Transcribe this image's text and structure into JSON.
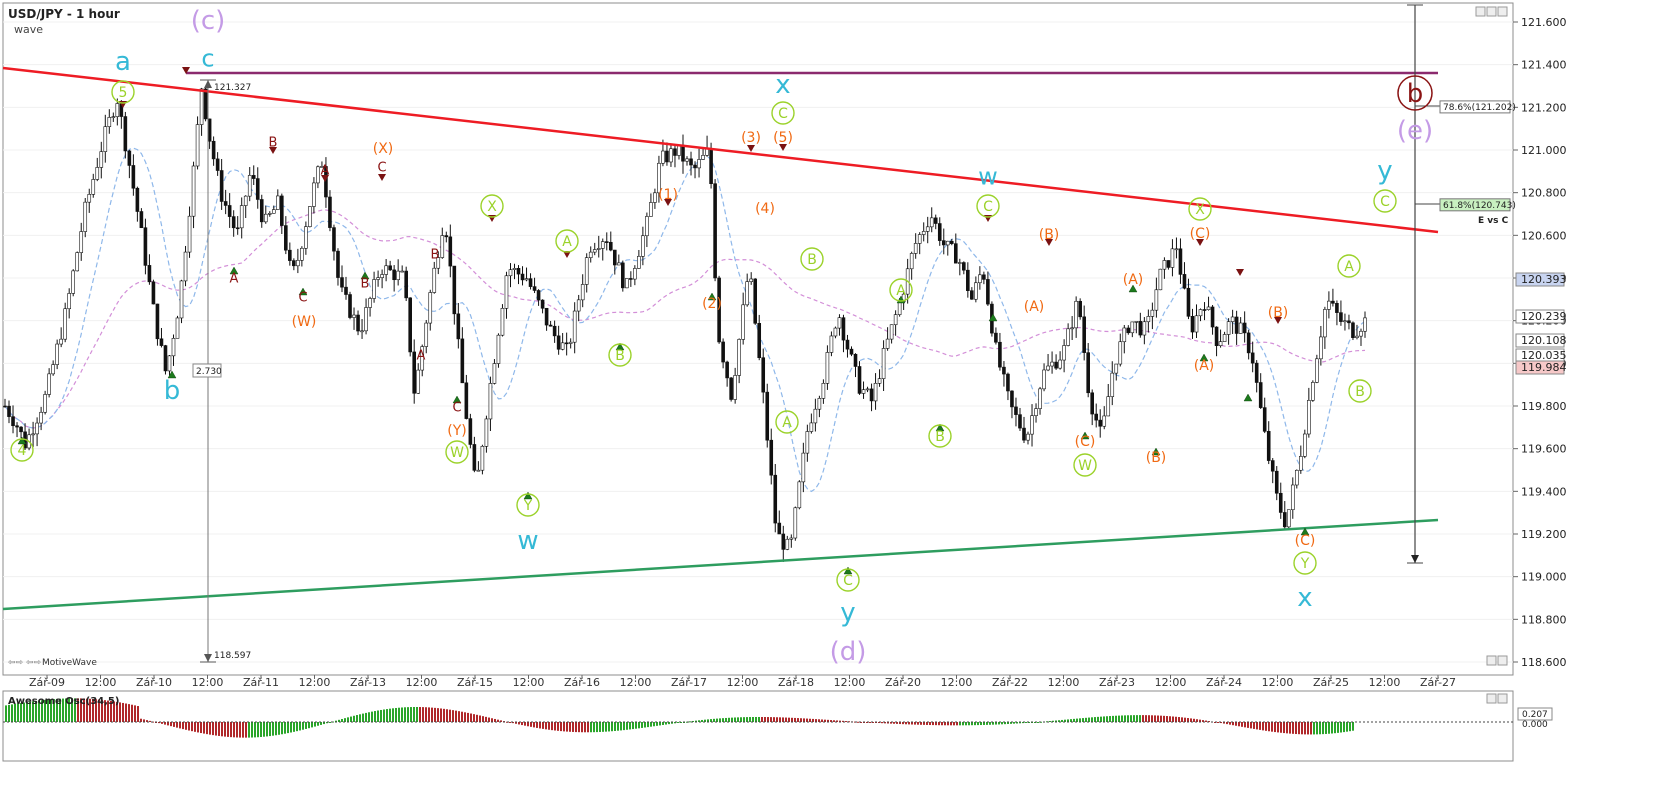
{
  "header": {
    "title": "USD/JPY - 1 hour",
    "subtitle": "wave",
    "brand": "MotiveWave",
    "oscillator_label": "Awesome Osc(34,5)",
    "oscillator_value": "0.207",
    "oscillator_zero": "0.000"
  },
  "colors": {
    "resistance_line": "#ee1c24",
    "support_line": "#2e9d5f",
    "horizontal_line": "#8b2a6e",
    "wave_cyan": "#35b9d6",
    "wave_violet": "#c49be6",
    "wave_orange": "#f06a14",
    "wave_maroon": "#8a1313",
    "wave_green": "#9bd22a",
    "osc_up": "#2aa52a",
    "osc_down": "#b0282a"
  },
  "chart_data": {
    "type": "line",
    "title": "USD/JPY - 1 hour",
    "ylim": [
      118.5,
      121.7
    ],
    "y_ticks": [
      "121.600",
      "121.400",
      "121.200",
      "121.000",
      "120.800",
      "120.600",
      "120.400",
      "120.200",
      "120.000",
      "119.800",
      "119.600",
      "119.400",
      "119.200",
      "119.000",
      "118.800",
      "118.600"
    ],
    "x_ticks": [
      "Zář-09",
      "12:00",
      "Zář-10",
      "12:00",
      "Zář-11",
      "12:00",
      "Zář-13",
      "12:00",
      "Zář-15",
      "12:00",
      "Zář-16",
      "12:00",
      "Zář-17",
      "12:00",
      "Zář-18",
      "12:00",
      "Zář-20",
      "12:00",
      "Zář-22",
      "12:00",
      "Zář-23",
      "12:00",
      "Zář-24",
      "12:00",
      "Zář-25",
      "12:00",
      "Zář-27"
    ],
    "price_labels": [
      {
        "text": "120.393",
        "value": 120.393,
        "bg": "#c8d4f0"
      },
      {
        "text": "120.239",
        "value": 120.239,
        "bg": "#ffffff"
      },
      {
        "text": "120.108",
        "value": 120.108,
        "bg": "#ffffff"
      },
      {
        "text": "120.035",
        "value": 120.035,
        "bg": "#ffffff"
      },
      {
        "text": "119.984",
        "value": 119.984,
        "bg": "#f6c8c8"
      }
    ],
    "fib_labels": [
      {
        "text": "78.6%(121.202)",
        "value": 121.202,
        "bg": "#ffffff"
      },
      {
        "text": "61.8%(120.743)",
        "value": 120.743,
        "bg": "#c8f0c0"
      }
    ],
    "fib_note": "E vs C",
    "measure": {
      "top": "121.327",
      "bottom": "118.597",
      "range": "2.730"
    },
    "series": [
      {
        "anchors": [
          [
            0,
            119.8
          ],
          [
            8,
            119.72
          ],
          [
            15,
            119.62
          ],
          [
            30,
            119.85
          ],
          [
            45,
            120.25
          ],
          [
            58,
            120.7
          ],
          [
            70,
            121.0
          ],
          [
            82,
            121.25
          ],
          [
            92,
            120.9
          ],
          [
            100,
            120.6
          ],
          [
            110,
            120.2
          ],
          [
            118,
            119.95
          ],
          [
            128,
            120.3
          ],
          [
            138,
            120.9
          ],
          [
            144,
            121.3
          ],
          [
            150,
            121.05
          ],
          [
            158,
            120.8
          ],
          [
            170,
            120.6
          ],
          [
            180,
            120.9
          ],
          [
            190,
            120.65
          ],
          [
            200,
            120.75
          ],
          [
            210,
            120.4
          ],
          [
            215,
            120.5
          ],
          [
            225,
            120.8
          ],
          [
            232,
            120.95
          ],
          [
            245,
            120.35
          ],
          [
            260,
            120.15
          ],
          [
            275,
            120.45
          ],
          [
            292,
            120.4
          ],
          [
            300,
            119.85
          ],
          [
            312,
            120.35
          ],
          [
            322,
            120.7
          ],
          [
            334,
            119.95
          ],
          [
            345,
            119.4
          ],
          [
            352,
            119.75
          ],
          [
            368,
            120.45
          ],
          [
            382,
            120.4
          ],
          [
            400,
            120.15
          ],
          [
            412,
            120.05
          ],
          [
            428,
            120.55
          ],
          [
            440,
            120.6
          ],
          [
            455,
            120.35
          ],
          [
            470,
            120.65
          ],
          [
            480,
            120.95
          ],
          [
            492,
            121.0
          ],
          [
            504,
            120.9
          ],
          [
            516,
            121.0
          ],
          [
            522,
            120.15
          ],
          [
            532,
            119.85
          ],
          [
            545,
            120.45
          ],
          [
            556,
            119.8
          ],
          [
            565,
            119.2
          ],
          [
            575,
            119.12
          ],
          [
            588,
            119.7
          ],
          [
            600,
            119.95
          ],
          [
            610,
            120.25
          ],
          [
            616,
            120.1
          ],
          [
            625,
            119.9
          ],
          [
            635,
            119.82
          ],
          [
            644,
            120.05
          ],
          [
            656,
            120.3
          ],
          [
            666,
            120.55
          ],
          [
            678,
            120.7
          ],
          [
            688,
            120.55
          ],
          [
            698,
            120.5
          ],
          [
            708,
            120.3
          ],
          [
            716,
            120.45
          ],
          [
            726,
            120.05
          ],
          [
            736,
            119.8
          ],
          [
            748,
            119.65
          ],
          [
            760,
            119.95
          ],
          [
            775,
            120.05
          ],
          [
            786,
            120.3
          ],
          [
            794,
            119.85
          ],
          [
            803,
            119.65
          ],
          [
            812,
            120.0
          ],
          [
            824,
            120.2
          ],
          [
            836,
            120.15
          ],
          [
            845,
            120.4
          ],
          [
            858,
            120.55
          ],
          [
            868,
            120.15
          ],
          [
            878,
            120.3
          ],
          [
            888,
            120.1
          ],
          [
            898,
            120.2
          ],
          [
            905,
            120.15
          ],
          [
            913,
            120.05
          ],
          [
            924,
            119.6
          ],
          [
            932,
            119.35
          ],
          [
            938,
            119.25
          ],
          [
            948,
            119.55
          ],
          [
            958,
            119.95
          ],
          [
            968,
            120.3
          ],
          [
            978,
            120.2
          ],
          [
            988,
            120.15
          ],
          [
            996,
            120.2
          ]
        ]
      }
    ]
  },
  "wave_labels": [
    {
      "text": "a",
      "x": 123,
      "y": 61,
      "color": "cyan",
      "size": 26
    },
    {
      "text": "(c)",
      "x": 208,
      "y": 20,
      "color": "violet",
      "size": 26
    },
    {
      "text": "c",
      "x": 208,
      "y": 58,
      "color": "cyan",
      "size": 24
    },
    {
      "text": "b",
      "x": 172,
      "y": 390,
      "color": "cyan",
      "size": 26
    },
    {
      "text": "x",
      "x": 783,
      "y": 84,
      "color": "cyan",
      "size": 26
    },
    {
      "text": "w",
      "x": 528,
      "y": 540,
      "color": "cyan",
      "size": 26
    },
    {
      "text": "y",
      "x": 848,
      "y": 612,
      "color": "cyan",
      "size": 26
    },
    {
      "text": "(d)",
      "x": 848,
      "y": 651,
      "color": "violet",
      "size": 26
    },
    {
      "text": "w",
      "x": 988,
      "y": 176,
      "color": "cyan",
      "size": 24
    },
    {
      "text": "x",
      "x": 1305,
      "y": 597,
      "color": "cyan",
      "size": 26
    },
    {
      "text": "y",
      "x": 1385,
      "y": 170,
      "color": "cyan",
      "size": 26
    },
    {
      "text": "(e)",
      "x": 1415,
      "y": 130,
      "color": "violet",
      "size": 26
    },
    {
      "text": "B",
      "x": 273,
      "y": 142,
      "color": "maroon",
      "size": 13
    },
    {
      "text": "A",
      "x": 325,
      "y": 170,
      "color": "maroon",
      "size": 13
    },
    {
      "text": "C",
      "x": 382,
      "y": 167,
      "color": "maroon",
      "size": 13
    },
    {
      "text": "A",
      "x": 234,
      "y": 278,
      "color": "maroon",
      "size": 13
    },
    {
      "text": "C",
      "x": 303,
      "y": 297,
      "color": "maroon",
      "size": 13
    },
    {
      "text": "B",
      "x": 365,
      "y": 283,
      "color": "maroon",
      "size": 13
    },
    {
      "text": "B",
      "x": 435,
      "y": 254,
      "color": "maroon",
      "size": 13
    },
    {
      "text": "A",
      "x": 421,
      "y": 355,
      "color": "maroon",
      "size": 13
    },
    {
      "text": "C",
      "x": 457,
      "y": 407,
      "color": "maroon",
      "size": 13
    },
    {
      "text": "(X)",
      "x": 383,
      "y": 148,
      "color": "orange",
      "size": 14
    },
    {
      "text": "(W)",
      "x": 304,
      "y": 321,
      "color": "orange",
      "size": 14
    },
    {
      "text": "(Y)",
      "x": 457,
      "y": 430,
      "color": "orange",
      "size": 14
    },
    {
      "text": "(1)",
      "x": 668,
      "y": 194,
      "color": "orange",
      "size": 14
    },
    {
      "text": "(2)",
      "x": 712,
      "y": 303,
      "color": "orange",
      "size": 14
    },
    {
      "text": "(3)",
      "x": 751,
      "y": 137,
      "color": "orange",
      "size": 14
    },
    {
      "text": "(4)",
      "x": 765,
      "y": 208,
      "color": "orange",
      "size": 14
    },
    {
      "text": "(5)",
      "x": 783,
      "y": 137,
      "color": "orange",
      "size": 14
    },
    {
      "text": "(B)",
      "x": 1049,
      "y": 234,
      "color": "orange",
      "size": 14
    },
    {
      "text": "(A)",
      "x": 1034,
      "y": 306,
      "color": "orange",
      "size": 14
    },
    {
      "text": "(C)",
      "x": 1085,
      "y": 441,
      "color": "orange",
      "size": 14
    },
    {
      "text": "(A)",
      "x": 1133,
      "y": 279,
      "color": "orange",
      "size": 14
    },
    {
      "text": "(B)",
      "x": 1156,
      "y": 457,
      "color": "orange",
      "size": 14
    },
    {
      "text": "(C)",
      "x": 1200,
      "y": 233,
      "color": "orange",
      "size": 14
    },
    {
      "text": "(A)",
      "x": 1204,
      "y": 365,
      "color": "orange",
      "size": 14
    },
    {
      "text": "(B)",
      "x": 1278,
      "y": 312,
      "color": "orange",
      "size": 14
    },
    {
      "text": "(C)",
      "x": 1305,
      "y": 540,
      "color": "orange",
      "size": 14
    },
    {
      "text": "b",
      "x": 1415,
      "y": 93,
      "color": "maroon",
      "size": 26
    }
  ],
  "circled_labels": [
    {
      "text": "5",
      "x": 123,
      "y": 92
    },
    {
      "text": "4",
      "x": 22,
      "y": 450
    },
    {
      "text": "X",
      "x": 492,
      "y": 206
    },
    {
      "text": "W",
      "x": 457,
      "y": 452
    },
    {
      "text": "Y",
      "x": 528,
      "y": 505
    },
    {
      "text": "A",
      "x": 567,
      "y": 241
    },
    {
      "text": "B",
      "x": 620,
      "y": 355
    },
    {
      "text": "C",
      "x": 783,
      "y": 113
    },
    {
      "text": "B",
      "x": 812,
      "y": 259
    },
    {
      "text": "A",
      "x": 787,
      "y": 422
    },
    {
      "text": "C",
      "x": 848,
      "y": 580
    },
    {
      "text": "A",
      "x": 901,
      "y": 290
    },
    {
      "text": "B",
      "x": 940,
      "y": 436
    },
    {
      "text": "C",
      "x": 988,
      "y": 206
    },
    {
      "text": "W",
      "x": 1085,
      "y": 465
    },
    {
      "text": "X",
      "x": 1200,
      "y": 209
    },
    {
      "text": "Y",
      "x": 1305,
      "y": 563
    },
    {
      "text": "A",
      "x": 1349,
      "y": 266
    },
    {
      "text": "B",
      "x": 1360,
      "y": 391
    },
    {
      "text": "C",
      "x": 1385,
      "y": 201
    }
  ]
}
